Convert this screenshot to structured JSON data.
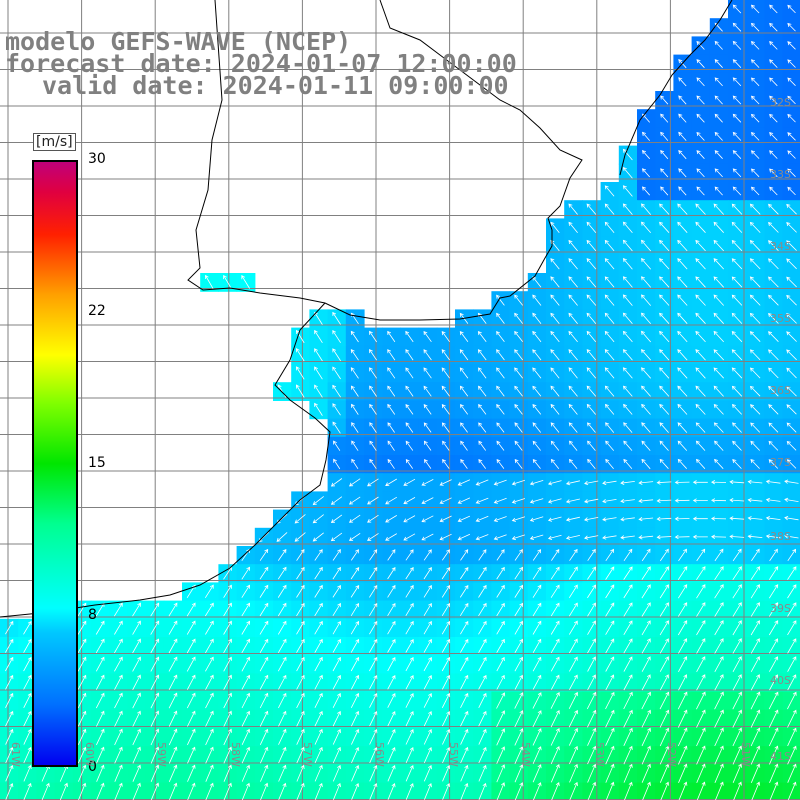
{
  "title": {
    "line1": "modelo GEFS-WAVE (NCEP)",
    "line2": "forecast date: 2024-01-07 12:00:00",
    "line3": "valid date: 2024-01-11 09:00:00"
  },
  "colorbar": {
    "unit": "[m/s]",
    "ticks": [
      "30",
      "22",
      "15",
      "8",
      "0"
    ],
    "tick_values": [
      30,
      22,
      15,
      8,
      0
    ],
    "min": 0,
    "max": 30,
    "colors": [
      "#0000f0",
      "#0070ff",
      "#00c8ff",
      "#00ffff",
      "#00ff90",
      "#00e600",
      "#80ff00",
      "#ffff00",
      "#ffa000",
      "#ff2000",
      "#c0007a"
    ]
  },
  "map": {
    "lat_labels": [
      "32S",
      "33S",
      "34S",
      "35S",
      "36S",
      "37S",
      "38S",
      "39S",
      "40S",
      "41S"
    ],
    "lon_labels": [
      "61W",
      "60W",
      "59W",
      "58W",
      "57W",
      "56W",
      "55W",
      "54W",
      "53W",
      "52W",
      "51W"
    ],
    "land_color": "#ffffff",
    "grid_color": "#808080"
  }
}
